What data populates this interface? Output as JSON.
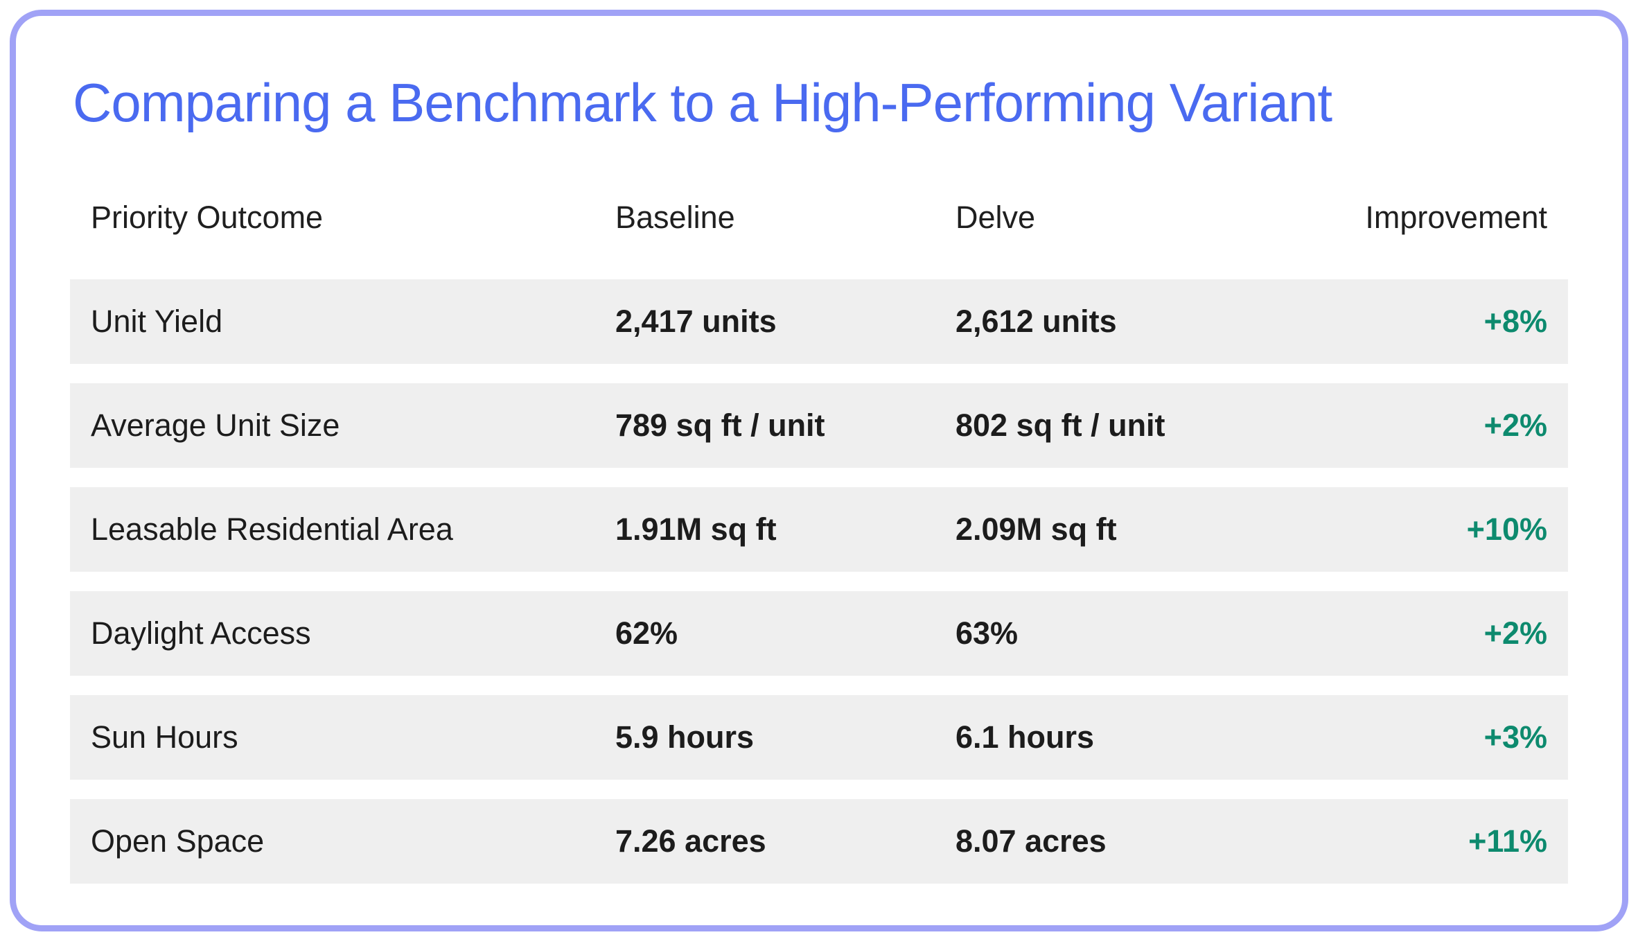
{
  "title": "Comparing a Benchmark to a High-Performing Variant",
  "colors": {
    "title_blue": "#4a6af0",
    "card_border_lavender": "#a0a2f6",
    "improvement_green": "#0d8a6e",
    "row_background": "#efefef",
    "body_text": "#1c1c1c"
  },
  "chart_data": {
    "type": "table",
    "title": "Comparing a Benchmark to a High-Performing Variant",
    "columns": [
      "Priority Outcome",
      "Baseline",
      "Delve",
      "Improvement"
    ],
    "rows": [
      [
        "Unit Yield",
        "2,417 units",
        "2,612 units",
        "+8%"
      ],
      [
        "Average Unit Size",
        "789 sq ft / unit",
        "802 sq ft / unit",
        "+2%"
      ],
      [
        "Leasable Residential Area",
        "1.91M sq ft",
        "2.09M sq ft",
        "+10%"
      ],
      [
        "Daylight Access",
        "62%",
        "63%",
        "+2%"
      ],
      [
        "Sun Hours",
        "5.9 hours",
        "6.1 hours",
        "+3%"
      ],
      [
        "Open Space",
        "7.26 acres",
        "8.07 acres",
        "+11%"
      ]
    ],
    "layout_hints": {
      "improvement_column_color": "green",
      "value_columns_bold": true,
      "striped_rows": "all rows shaded"
    }
  }
}
